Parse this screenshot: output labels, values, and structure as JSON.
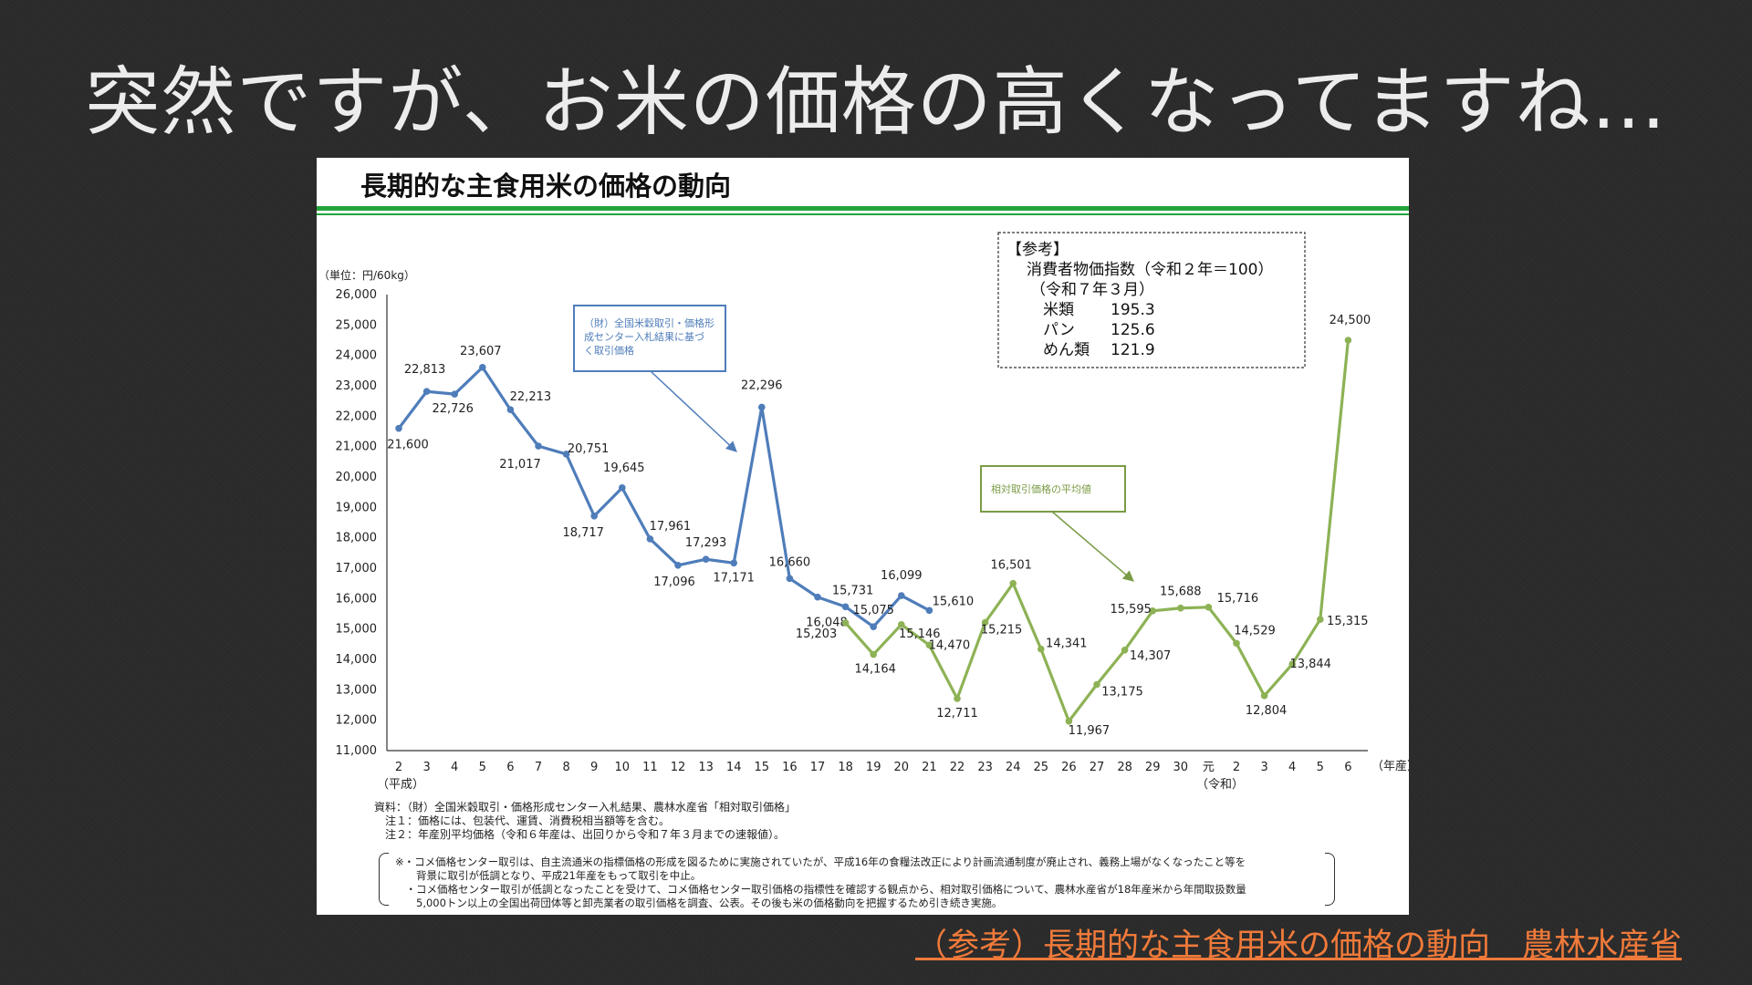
{
  "slide": {
    "title": "突然ですが、お米の価格の高くなってますね…",
    "source_link": "（参考）長期的な主食用米の価格の動向　農林水産省"
  },
  "colors": {
    "blue_series": "#4f7dba",
    "green_series": "#8db255",
    "accent_rule": "#22a43a",
    "link": "#f07a3a"
  },
  "chart_data": {
    "type": "line",
    "title": "長期的な主食用米の価格の動向",
    "unit_label": "（単位：円/60kg）",
    "ylim": [
      11000,
      26000
    ],
    "yticks": [
      "11,000",
      "12,000",
      "13,000",
      "14,000",
      "15,000",
      "16,000",
      "17,000",
      "18,000",
      "19,000",
      "20,000",
      "21,000",
      "22,000",
      "23,000",
      "24,000",
      "25,000",
      "26,000"
    ],
    "x_tick_labels": [
      "2",
      "3",
      "4",
      "5",
      "6",
      "7",
      "8",
      "9",
      "10",
      "11",
      "12",
      "13",
      "14",
      "15",
      "16",
      "17",
      "18",
      "19",
      "20",
      "21",
      "22",
      "23",
      "24",
      "25",
      "26",
      "27",
      "28",
      "29",
      "30",
      "元",
      "2",
      "3",
      "4",
      "5",
      "6"
    ],
    "x_suffix": "（年産）",
    "era_heisei": "（平成）",
    "era_reiwa": "（令和）",
    "series": [
      {
        "name": "（財）全国米穀取引・価格形成センター入札結果に基づく取引価格",
        "callout_lines": [
          "（財）全国米穀取引・価格形",
          "成センター入札結果に基づ",
          "く取引価格"
        ],
        "start_index": 0,
        "values": [
          21600,
          22813,
          22726,
          23607,
          22213,
          21017,
          20751,
          18717,
          19645,
          17961,
          17096,
          17293,
          17171,
          22296,
          16660,
          16048,
          15731,
          15075,
          16099,
          15610
        ],
        "labels": [
          "21,600",
          "22,813",
          "22,726",
          "23,607",
          "22,213",
          "21,017",
          "20,751",
          "18,717",
          "19,645",
          "17,961",
          "17,096",
          "17,293",
          "17,171",
          "22,296",
          "16,660",
          "16,048",
          "15,731",
          "15,075",
          "16,099",
          "15,610"
        ]
      },
      {
        "name": "相対取引価格の平均値",
        "callout_lines": [
          "相対取引価格の平均値"
        ],
        "start_index": 16,
        "values": [
          15203,
          14164,
          15146,
          14470,
          12711,
          15215,
          16501,
          14341,
          11967,
          13175,
          14307,
          15595,
          15688,
          15716,
          14529,
          12804,
          13844,
          15315,
          24500
        ],
        "labels": [
          "15,203",
          "14,164",
          "15,146",
          "14,470",
          "12,711",
          "15,215",
          "16,501",
          "14,341",
          "11,967",
          "13,175",
          "14,307",
          "15,595",
          "15,688",
          "15,716",
          "14,529",
          "12,804",
          "13,844",
          "15,315",
          "24,500"
        ]
      }
    ],
    "reference_box": {
      "title": "【参考】",
      "line1": "消費者物価指数（令和２年＝100）",
      "line2": "（令和７年３月）",
      "items": [
        {
          "name": "米類",
          "value": "195.3"
        },
        {
          "name": "パン",
          "value": "125.6"
        },
        {
          "name": "めん類",
          "value": "121.9"
        }
      ]
    },
    "notes": [
      "資料：（財）全国米穀取引・価格形成センター入札結果、農林水産省「相対取引価格」",
      "　注１：価格には、包装代、運賃、消費税相当額等を含む。",
      "　注２：年産別平均価格（令和６年産は、出回りから令和７年３月までの速報値）。"
    ],
    "caution": [
      "※・コメ価格センター取引は、自主流通米の指標価格の形成を図るために実施されていたが、平成16年の食糧法改正により計画流通制度が廃止され、義務上場がなくなったこと等を",
      "　　背景に取引が低調となり、平成21年産をもって取引を中止。",
      "　・コメ価格センター取引が低調となったことを受けて、コメ価格センター取引価格の指標性を確認する観点から、相対取引価格について、農林水産省が18年産米から年間取扱数量",
      "　　5,000トン以上の全国出荷団体等と卸売業者の取引価格を調査、公表。その後も米の価格動向を把握するため引き続き実施。"
    ]
  }
}
